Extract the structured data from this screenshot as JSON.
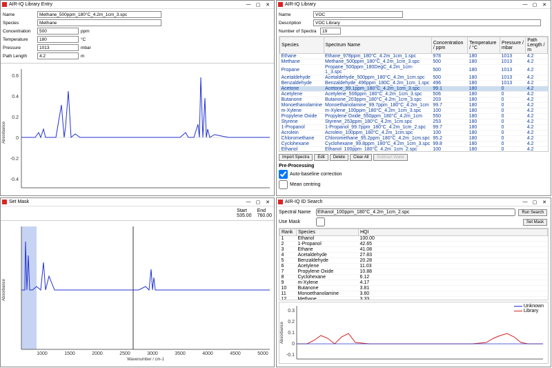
{
  "colors": {
    "spectrum_blue": "#2030d0",
    "spectrum_red": "#d02020",
    "mask_fill": "#b8c8f0",
    "grid": "#e0e0e0",
    "axis": "#666"
  },
  "library_entry": {
    "title": "AIR-IQ Library Entry",
    "fields": {
      "name_label": "Name",
      "name_value": "Methane_500ppm_180°C_4.2m_1cm_3.spc",
      "species_label": "Species",
      "species_value": "Methane",
      "conc_label": "Concentration",
      "conc_value": "500",
      "conc_unit": "ppm",
      "temp_label": "Temperature",
      "temp_value": "180",
      "temp_unit": "°C",
      "press_label": "Pressure",
      "press_value": "1013",
      "press_unit": "mbar",
      "path_label": "Path Length",
      "path_value": "4.2",
      "path_unit": "m"
    },
    "chart": {
      "ylabel": "Absorbance",
      "yticks": [
        "-0.4",
        "-0.2",
        "0",
        "0.2",
        "0.4",
        "0.6"
      ],
      "trace_color": "#2030d0"
    }
  },
  "library": {
    "title": "AIR-IQ Library",
    "fields": {
      "name_label": "Name",
      "name_value": "VOC",
      "desc_label": "Description",
      "desc_value": "VOC Library",
      "count_label": "Number of Spectra",
      "count_value": "19"
    },
    "columns": [
      "Species",
      "Spectrum Name",
      "Concentration / ppm",
      "Temperature / °C",
      "Pressure / mbar",
      "Path Length / m"
    ],
    "rows": [
      [
        "Ethane",
        "Ethane_978ppm_180°C_4.2m_1cm_1.spc",
        "978",
        "180",
        "1013",
        "4.2"
      ],
      [
        "Methane",
        "Methane_500ppm_180°C_4.2m_1cm_3.spc",
        "500",
        "180",
        "1013",
        "4.2"
      ],
      [
        "Propane",
        "Propane_500ppm_180DegC_4.2m_1cm-1_3.spc",
        "500",
        "180",
        "1013",
        "4.2"
      ],
      [
        "Acetaldehyde",
        "Acetaldehyde_500ppm_180°C_4.2m_1cm.spc",
        "500",
        "180",
        "1013",
        "4.2"
      ],
      [
        "Benzaldehyde",
        "Benzaldehyde_496ppm_180C_4.2m_1cm_1.spc",
        "496",
        "180",
        "1013",
        "4.2"
      ],
      [
        "Acetone",
        "Acetone_99.1ppm_180°C_4.2m_1cm_3.spc",
        "99.1",
        "180",
        "0",
        "4.2"
      ],
      [
        "Acetylene",
        "Acetylene_506ppm_180°C_4.2m_1cm_3.spc",
        "506",
        "180",
        "0",
        "4.2"
      ],
      [
        "Butanone",
        "Butanone_203ppm_180°C_4.2m_1cm_3.spc",
        "203",
        "180",
        "0",
        "4.2"
      ],
      [
        "Monoethanolamine",
        "Monoethanolamine_99.7ppm_180°C_4.2m_1cm",
        "99.7",
        "180",
        "0",
        "4.2"
      ],
      [
        "m-Xylene",
        "m-Xylene_100ppm_180°C_4.2m_1cm_3.spc",
        "100",
        "180",
        "0",
        "4.2"
      ],
      [
        "Propylene Oxide",
        "Propylene Oxide_550ppm_180°C_4.2m_1cm",
        "550",
        "180",
        "0",
        "4.2"
      ],
      [
        "Styrene",
        "Styrene_253ppm_180°C_4.2m_1cm.spc",
        "253",
        "180",
        "0",
        "4.2"
      ],
      [
        "1-Propanol",
        "1-Propanol_99.7ppm_180°C_4.2m_1cm_2.spc",
        "99.7",
        "180",
        "0",
        "4.2"
      ],
      [
        "Acrolein",
        "Acrolein_100ppm_180°C_4.2m_1cm.spc",
        "100",
        "180",
        "0",
        "4.2"
      ],
      [
        "Chloromethane",
        "Chloromethane_95.2ppm_180°C_4.2m_1cm.spc",
        "95.2",
        "180",
        "0",
        "4.2"
      ],
      [
        "Cyclohexane",
        "Cyclohexane_99.8ppm_180°C_4.2m_1cm_3.spc",
        "99.8",
        "180",
        "0",
        "4.2"
      ],
      [
        "Ethanol",
        "Ethanol_100ppm_180°C_4.2m_1cm_2.spc",
        "100",
        "180",
        "0",
        "4.2"
      ],
      [
        "Ethyl acetate",
        "Ethyl acetate_152ppm_180°C_4.2m_1cm_3.spc",
        "152",
        "180",
        "0",
        "4.2"
      ]
    ],
    "selected_row": 5,
    "buttons": [
      "Import Spectra",
      "Edit",
      "Delete",
      "Clear All",
      "Subtract Water"
    ],
    "preproc_label": "Pre-Processing",
    "baseline_label": "Auto-baseline correction",
    "baseline_checked": true,
    "meancenter_label": "Mean centring",
    "meancenter_checked": false
  },
  "mask": {
    "title": "Set Mask",
    "start_label": "Start",
    "end_label": "End",
    "start_value": "535.00",
    "end_value": "760.00",
    "chart": {
      "xlabel": "Wavenumber / cm-1",
      "ylabel": "Absorbance",
      "xticks": [
        "1000",
        "1500",
        "2000",
        "2500",
        "3000",
        "3500",
        "4000",
        "4500",
        "5000"
      ],
      "yticks": [
        "-0.4",
        "-0.2",
        "0",
        "0.2",
        "0.4",
        "0.6"
      ],
      "trace_color": "#2030d0",
      "mask_color": "#b8c8f0",
      "mask_range": [
        535,
        760
      ],
      "cursor_x": 2650
    }
  },
  "search": {
    "title": "AIR-IQ ID Search",
    "spectral_label": "Spectral Name",
    "spectral_value": "Ethanol_100ppm_180°C_4.2m_1cm_2.spc",
    "usemask_label": "Use Mask",
    "usemask_checked": false,
    "run_button": "Run Search",
    "mask_button": "Set Mask",
    "columns": [
      "Rank",
      "Species",
      "HQI"
    ],
    "rows": [
      [
        "1",
        "Ethanol",
        "100.00"
      ],
      [
        "2",
        "1-Propanol",
        "42.65"
      ],
      [
        "3",
        "Ethane",
        "41.08"
      ],
      [
        "4",
        "Acetaldehyde",
        "27.83"
      ],
      [
        "5",
        "Benzaldehyde",
        "20.28"
      ],
      [
        "6",
        "Acetylene",
        "11.03"
      ],
      [
        "7",
        "Propylene Oxide",
        "10.88"
      ],
      [
        "8",
        "Cyclohexane",
        "6.12"
      ],
      [
        "9",
        "m-Xylene",
        "4.17"
      ],
      [
        "10",
        "Butanone",
        "3.81"
      ],
      [
        "11",
        "Monoethanolamine",
        "3.60"
      ],
      [
        "12",
        "Methane",
        "3.33"
      ],
      [
        "13",
        "Acetone",
        "2.96"
      ]
    ],
    "chart": {
      "ylabel": "Absorbance",
      "yticks": [
        "-0.1",
        "0",
        "0.1",
        "0.2",
        "0.3"
      ],
      "legend": [
        {
          "label": "Unknown",
          "color": "#2030d0"
        },
        {
          "label": "Library",
          "color": "#d02020"
        }
      ]
    }
  }
}
